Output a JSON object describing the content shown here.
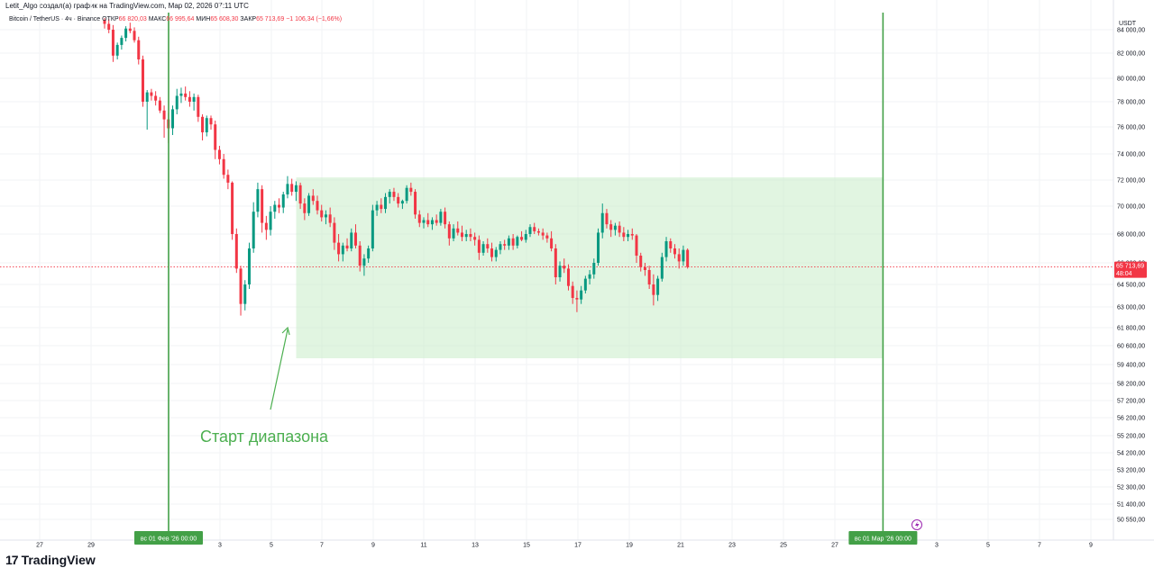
{
  "header": {
    "credit": "Letit_Algo создал(а) график на TradingView.com, Мар 02, 2026 07:11 UTC"
  },
  "legend": {
    "symbol": "Bitcoin / TetherUS · 4ч · Binance",
    "o_label": "ОТКР",
    "o": "66 820,03",
    "h_label": "МАКС",
    "h": "66 995,64",
    "l_label": "МИН",
    "l": "65 608,30",
    "c_label": "ЗАКР",
    "c": "65 713,69",
    "change": "−1 106,34 (−1,66%)"
  },
  "price_axis": {
    "unit": "USDT",
    "last_price": "65 713,69",
    "countdown": "48:04"
  },
  "time_axis": {
    "highlight_labels": [
      "вс 01 Фев '26   00:00",
      "вс 01 Мар '26   00:00"
    ]
  },
  "brand": {
    "name": "TradingView",
    "logo": "17"
  },
  "colors": {
    "up": "#089981",
    "down": "#f23645",
    "range_fill": "#c8ecc8",
    "vline": "#43a047",
    "annotation": "#4caf50"
  },
  "chart_data": {
    "type": "candlestick",
    "timeframe": "4h",
    "y_ticks": [
      84000,
      82000,
      80000,
      78000,
      76000,
      74000,
      72000,
      70000,
      68000,
      66000,
      64500,
      63000,
      61800,
      60600,
      59400,
      58200,
      57200,
      56200,
      55200,
      54200,
      53200,
      52300,
      51400,
      50550
    ],
    "y_tick_labels": [
      "84 000,00",
      "82 000,00",
      "80 000,00",
      "78 000,00",
      "76 000,00",
      "74 000,00",
      "72 000,00",
      "70 000,00",
      "68 000,00",
      "66 000,00",
      "64 500,00",
      "63 000,00",
      "61 800,00",
      "60 600,00",
      "59 400,00",
      "58 200,00",
      "57 200,00",
      "56 200,00",
      "55 200,00",
      "54 200,00",
      "53 200,00",
      "52 300,00",
      "51 400,00",
      "50 550,00"
    ],
    "x_ticks": [
      "27",
      "29",
      "3",
      "5",
      "7",
      "9",
      "11",
      "13",
      "15",
      "17",
      "19",
      "21",
      "23",
      "25",
      "27",
      "3",
      "5",
      "7",
      "9"
    ],
    "last_price": 65713.69,
    "range_box": {
      "from": "2026-02-06 00:00",
      "to": "2026-03-01 00:00",
      "top": 72200,
      "bottom": 59800
    },
    "vertical_lines": [
      "2026-02-01 00:00",
      "2026-03-01 00:00"
    ],
    "annotation": {
      "text": "Старт диапазона",
      "points_to": "2026-02-05 16:00"
    },
    "candles": [
      [
        84800,
        85000,
        84100,
        84500
      ],
      [
        84500,
        84900,
        83700,
        84000
      ],
      [
        84000,
        84400,
        81300,
        81800
      ],
      [
        81800,
        82900,
        81500,
        82700
      ],
      [
        82700,
        83500,
        82300,
        83300
      ],
      [
        83300,
        84300,
        83000,
        84100
      ],
      [
        84100,
        84600,
        83700,
        83900
      ],
      [
        83900,
        84200,
        82900,
        83100
      ],
      [
        83100,
        83400,
        81100,
        81500
      ],
      [
        81500,
        81800,
        77600,
        78000
      ],
      [
        78000,
        79000,
        75800,
        78800
      ],
      [
        78800,
        79100,
        78100,
        78500
      ],
      [
        78500,
        78900,
        77700,
        78100
      ],
      [
        78100,
        78400,
        77100,
        77300
      ],
      [
        77300,
        77700,
        75200,
        76600
      ],
      [
        76600,
        77100,
        74800,
        75900
      ],
      [
        75900,
        77700,
        75400,
        77400
      ],
      [
        77400,
        79100,
        77000,
        78500
      ],
      [
        78500,
        79200,
        77900,
        78700
      ],
      [
        78700,
        79300,
        78100,
        78400
      ],
      [
        78400,
        78900,
        77600,
        78000
      ],
      [
        78000,
        78700,
        77300,
        78400
      ],
      [
        78400,
        78600,
        76400,
        76800
      ],
      [
        76800,
        77000,
        75000,
        75600
      ],
      [
        75600,
        76900,
        75300,
        76700
      ],
      [
        76700,
        76900,
        75800,
        76200
      ],
      [
        76200,
        76500,
        73600,
        74300
      ],
      [
        74300,
        74600,
        73200,
        73600
      ],
      [
        73600,
        74000,
        72100,
        72400
      ],
      [
        72400,
        72800,
        71300,
        71800
      ],
      [
        71800,
        71900,
        67600,
        68000
      ],
      [
        68000,
        68400,
        65300,
        65600
      ],
      [
        65600,
        65800,
        62500,
        63200
      ],
      [
        63200,
        64800,
        62800,
        64500
      ],
      [
        64500,
        67400,
        64200,
        67000
      ],
      [
        67000,
        70300,
        66700,
        69600
      ],
      [
        69600,
        71800,
        69200,
        71300
      ],
      [
        71300,
        71600,
        68100,
        68800
      ],
      [
        68800,
        69300,
        67600,
        68300
      ],
      [
        68300,
        70000,
        67900,
        69600
      ],
      [
        69600,
        70400,
        69100,
        70100
      ],
      [
        70100,
        70600,
        69500,
        69900
      ],
      [
        69900,
        71100,
        69500,
        70900
      ],
      [
        70900,
        72300,
        70600,
        71700
      ],
      [
        71700,
        72100,
        70800,
        71100
      ],
      [
        71100,
        71900,
        70400,
        71600
      ],
      [
        71600,
        71800,
        69800,
        70200
      ],
      [
        70200,
        70600,
        69000,
        69500
      ],
      [
        69500,
        71000,
        69300,
        70800
      ],
      [
        70800,
        71300,
        70100,
        70400
      ],
      [
        70400,
        70800,
        69400,
        69700
      ],
      [
        69700,
        70100,
        68900,
        69200
      ],
      [
        69200,
        69700,
        68700,
        69400
      ],
      [
        69400,
        69900,
        68500,
        68800
      ],
      [
        68800,
        69200,
        66900,
        67400
      ],
      [
        67400,
        68000,
        66100,
        66600
      ],
      [
        66600,
        67400,
        66100,
        67200
      ],
      [
        67200,
        67700,
        66800,
        67000
      ],
      [
        67000,
        68400,
        66800,
        68100
      ],
      [
        68100,
        68700,
        67000,
        67200
      ],
      [
        67200,
        67500,
        65400,
        65800
      ],
      [
        65800,
        66600,
        65100,
        66300
      ],
      [
        66300,
        67200,
        66000,
        67000
      ],
      [
        67000,
        70100,
        66800,
        69700
      ],
      [
        69700,
        70400,
        69300,
        70100
      ],
      [
        70100,
        70600,
        69500,
        69800
      ],
      [
        69800,
        71000,
        69500,
        70700
      ],
      [
        70700,
        71300,
        70200,
        71100
      ],
      [
        71100,
        71400,
        70400,
        70700
      ],
      [
        70700,
        71000,
        69900,
        70200
      ],
      [
        70200,
        70500,
        69800,
        70400
      ],
      [
        70400,
        71600,
        70200,
        71400
      ],
      [
        71400,
        71800,
        70800,
        71100
      ],
      [
        71100,
        71300,
        69100,
        69400
      ],
      [
        69400,
        69700,
        68500,
        68800
      ],
      [
        68800,
        69200,
        68400,
        69000
      ],
      [
        69000,
        69500,
        68500,
        68700
      ],
      [
        68700,
        69200,
        68300,
        69000
      ],
      [
        69000,
        69400,
        68600,
        68800
      ],
      [
        68800,
        69800,
        68600,
        69600
      ],
      [
        69600,
        69900,
        68400,
        68700
      ],
      [
        68700,
        68900,
        67200,
        67700
      ],
      [
        67700,
        68700,
        67500,
        68400
      ],
      [
        68400,
        68900,
        67900,
        68100
      ],
      [
        68100,
        68600,
        67500,
        67800
      ],
      [
        67800,
        68300,
        67500,
        68000
      ],
      [
        68000,
        68400,
        67500,
        67800
      ],
      [
        67800,
        68100,
        67200,
        67600
      ],
      [
        67600,
        67900,
        66200,
        66700
      ],
      [
        66700,
        67500,
        66500,
        67300
      ],
      [
        67300,
        67700,
        66700,
        67000
      ],
      [
        67000,
        67400,
        66100,
        66400
      ],
      [
        66400,
        67100,
        66100,
        66900
      ],
      [
        66900,
        67500,
        66600,
        67300
      ],
      [
        67300,
        67600,
        66900,
        67200
      ],
      [
        67200,
        67900,
        66900,
        67700
      ],
      [
        67700,
        68000,
        66900,
        67200
      ],
      [
        67200,
        67900,
        67000,
        67800
      ],
      [
        67800,
        68200,
        67500,
        67600
      ],
      [
        67600,
        68300,
        67400,
        68000
      ],
      [
        68000,
        68700,
        67800,
        68500
      ],
      [
        68500,
        68800,
        68000,
        68200
      ],
      [
        68200,
        68400,
        67900,
        68100
      ],
      [
        68100,
        68400,
        67600,
        67900
      ],
      [
        67900,
        68100,
        67400,
        67700
      ],
      [
        67700,
        68200,
        66800,
        67000
      ],
      [
        67000,
        67300,
        64500,
        65000
      ],
      [
        65000,
        66100,
        64700,
        65800
      ],
      [
        65800,
        66300,
        65300,
        65600
      ],
      [
        65600,
        65900,
        64100,
        64400
      ],
      [
        64400,
        64700,
        63200,
        63600
      ],
      [
        63600,
        64100,
        62700,
        63500
      ],
      [
        63500,
        64400,
        63200,
        64100
      ],
      [
        64100,
        65100,
        63900,
        64900
      ],
      [
        64900,
        65500,
        64500,
        65200
      ],
      [
        65200,
        66300,
        64900,
        66000
      ],
      [
        66000,
        68400,
        65800,
        68100
      ],
      [
        68100,
        70200,
        67700,
        69500
      ],
      [
        69500,
        69800,
        68400,
        68700
      ],
      [
        68700,
        69000,
        67800,
        68300
      ],
      [
        68300,
        68800,
        67900,
        68600
      ],
      [
        68600,
        68900,
        67800,
        68100
      ],
      [
        68100,
        68500,
        67500,
        67800
      ],
      [
        67800,
        68300,
        67500,
        68000
      ],
      [
        68000,
        68400,
        67600,
        67900
      ],
      [
        67900,
        68000,
        66000,
        66500
      ],
      [
        66500,
        66700,
        65400,
        65700
      ],
      [
        65700,
        66000,
        65100,
        65500
      ],
      [
        65500,
        65800,
        64200,
        64500
      ],
      [
        64500,
        65200,
        63100,
        63800
      ],
      [
        63800,
        65100,
        63400,
        64900
      ],
      [
        64900,
        66700,
        64700,
        66400
      ],
      [
        66400,
        67800,
        66100,
        67500
      ],
      [
        67500,
        67700,
        66700,
        67000
      ],
      [
        67000,
        67300,
        66300,
        66600
      ],
      [
        66600,
        67000,
        65600,
        66100
      ],
      [
        66100,
        67200,
        65800,
        66900
      ],
      [
        66900,
        67000,
        65600,
        65714
      ]
    ]
  }
}
